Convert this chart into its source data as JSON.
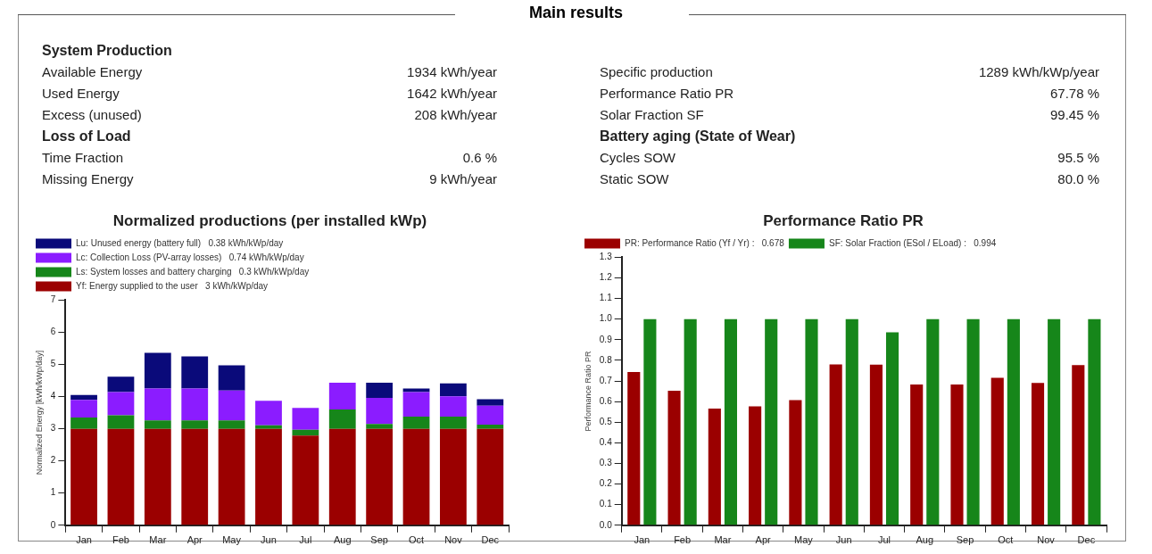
{
  "chart_data": [
    {
      "type": "other",
      "title": "Main results",
      "annotations": [
        "System Production",
        "Available Energy",
        "1934 kWh/year",
        "Specific production",
        "1289 kWh/kWp/year",
        "Used Energy",
        "1642 kWh/year",
        "Performance Ratio PR",
        "67.78 %",
        "Excess (unused)",
        "208 kWh/year",
        "Solar Fraction SF",
        "99.45 %",
        "Loss of Load",
        "Battery aging (State of Wear)",
        "Time Fraction",
        "0.6 %",
        "Cycles SOW",
        "95.5 %",
        "Missing Energy",
        "9 kWh/year",
        "Static SOW",
        "80.0 %"
      ]
    },
    {
      "type": "bar",
      "title": "Normalized productions (per installed kWp)",
      "ylabel": "Normalized Energy [kWh/kWp/day]",
      "stacked": true,
      "legend": "top left",
      "grid": false,
      "categories": [
        "Jan",
        "Feb",
        "Mar",
        "Apr",
        "May",
        "Jun",
        "Jul",
        "Aug",
        "Sep",
        "Oct",
        "Nov",
        "Dec"
      ],
      "ylim": [
        0,
        7
      ],
      "yticks": [
        0,
        1,
        2,
        3,
        4,
        5,
        6,
        7
      ],
      "series": [
        {
          "name": "Yf: Energy supplied to the user   3 kWh/kWp/day",
          "color": "#9b0000",
          "values": [
            3.0,
            3.0,
            3.0,
            3.0,
            3.0,
            3.0,
            2.79,
            3.0,
            3.0,
            3.0,
            3.0,
            3.0
          ]
        },
        {
          "name": "Ls: System losses and battery charging   0.3 kWh/kWp/day",
          "color": "#16861a",
          "values": [
            0.35,
            0.42,
            0.26,
            0.26,
            0.26,
            0.11,
            0.18,
            0.6,
            0.15,
            0.38,
            0.38,
            0.13
          ]
        },
        {
          "name": "Lc: Collection Loss (PV-array losses)   0.74 kWh/kWp/day",
          "color": "#8b1cff",
          "values": [
            0.55,
            0.72,
            0.99,
            0.99,
            0.93,
            0.76,
            0.68,
            0.83,
            0.81,
            0.76,
            0.63,
            0.59
          ]
        },
        {
          "name": "Lu: Unused energy (battery full)   0.38 kWh/kWp/day",
          "color": "#0a0a7a",
          "values": [
            0.15,
            0.48,
            1.11,
            1.0,
            0.78,
            0,
            0,
            0,
            0.47,
            0.11,
            0.4,
            0.2
          ]
        }
      ]
    },
    {
      "type": "bar",
      "title": "Performance Ratio PR",
      "ylabel": "Performance Ratio PR",
      "legend": "top left",
      "grid": false,
      "categories": [
        "Jan",
        "Feb",
        "Mar",
        "Apr",
        "May",
        "Jun",
        "Jul",
        "Aug",
        "Sep",
        "Oct",
        "Nov",
        "Dec"
      ],
      "ylim": [
        0,
        1.3
      ],
      "yticks": [
        {
          "value": 0,
          "label": "0.0"
        },
        {
          "value": 0.1,
          "label": "0.1"
        },
        {
          "value": 0.2,
          "label": "0.2"
        },
        {
          "value": 0.3,
          "label": "0.3"
        },
        {
          "value": 0.4,
          "label": "0.4"
        },
        {
          "value": 0.5,
          "label": "0.5"
        },
        {
          "value": 0.6,
          "label": "0.6"
        },
        {
          "value": 0.7,
          "label": "0.7"
        },
        {
          "value": 0.8,
          "label": "0.8"
        },
        {
          "value": 0.9,
          "label": "0.9"
        },
        {
          "value": 1,
          "label": "1.0"
        },
        {
          "value": 1.1,
          "label": "1.1"
        },
        {
          "value": 1.2,
          "label": "1.2"
        },
        {
          "value": 1.3,
          "label": "1.3"
        }
      ],
      "series": [
        {
          "name": "PR: Performance Ratio (Yf / Yr) :   0.678",
          "color": "#9b0000",
          "values": [
            0.743,
            0.653,
            0.566,
            0.577,
            0.607,
            0.78,
            0.779,
            0.683,
            0.683,
            0.715,
            0.69,
            0.777
          ]
        },
        {
          "name": "SF: Solar Fraction (ESol / ELoad) :   0.994",
          "color": "#16861a",
          "values": [
            1.0,
            1.0,
            1.0,
            1.0,
            1.0,
            1.0,
            0.936,
            1.0,
            1.0,
            1.0,
            1.0,
            1.0
          ]
        }
      ]
    }
  ]
}
